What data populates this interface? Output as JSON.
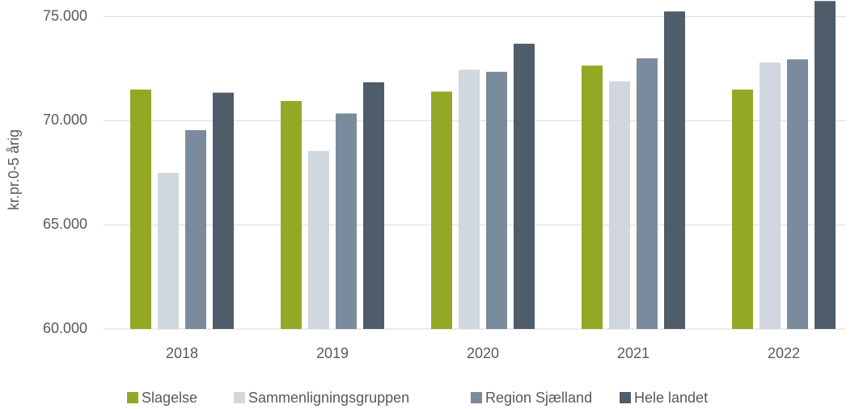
{
  "chart_data": {
    "type": "bar",
    "y_label": "kr.pr.0-5 årig",
    "categories": [
      "2018",
      "2019",
      "2020",
      "2021",
      "2022"
    ],
    "series": [
      {
        "name": "Slagelse",
        "color": "#94a826",
        "values": [
          71500,
          70950,
          71400,
          72650,
          71500
        ]
      },
      {
        "name": "Sammenligningsgruppen",
        "color": "#d0d7de",
        "values": [
          67500,
          68550,
          72450,
          71900,
          72800
        ]
      },
      {
        "name": "Region Sjælland",
        "color": "#7b8b9e",
        "values": [
          69550,
          70350,
          72350,
          73000,
          72950
        ]
      },
      {
        "name": "Hele landet",
        "color": "#4f5d6b",
        "values": [
          71350,
          71850,
          73700,
          75250,
          75750
        ]
      }
    ],
    "ylim": [
      60000,
      75800
    ],
    "yticks": [
      {
        "value": 60000,
        "label": "60.000"
      },
      {
        "value": 65000,
        "label": "65.000"
      },
      {
        "value": 70000,
        "label": "70.000"
      },
      {
        "value": 75000,
        "label": "75.000"
      }
    ],
    "grid": true,
    "legend": "bottom"
  }
}
